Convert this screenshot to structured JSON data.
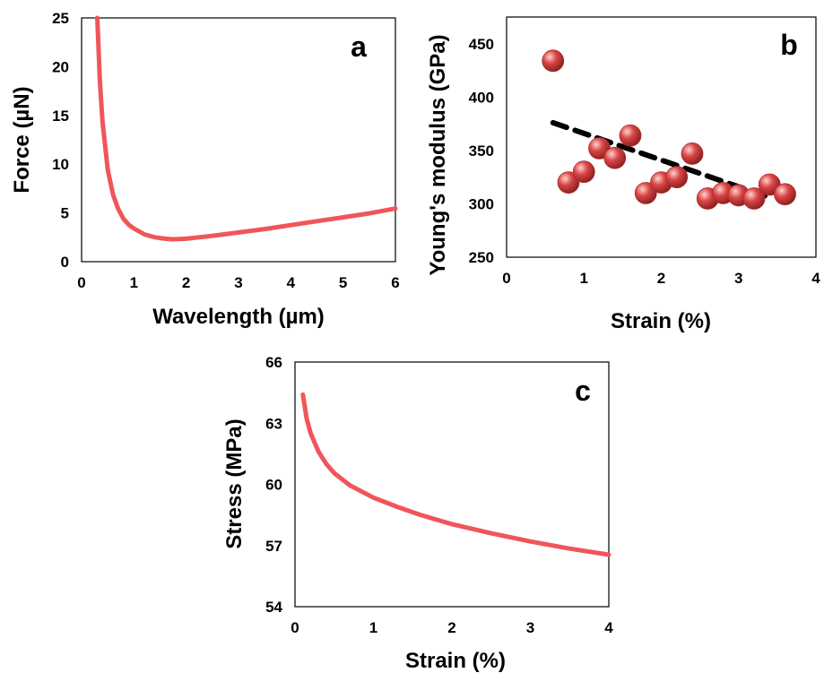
{
  "colors": {
    "curve": "#f0555a",
    "marker": "#d94545",
    "trend": "#000000"
  },
  "chart_data": [
    {
      "type": "line",
      "panel_label": "a",
      "xlabel": "Wavelength (µm)",
      "ylabel": "Force (µN)",
      "xlim": [
        0,
        6
      ],
      "ylim": [
        0,
        25
      ],
      "xticks": [
        "0",
        "1",
        "2",
        "3",
        "4",
        "5",
        "6"
      ],
      "yticks": [
        "0",
        "5",
        "10",
        "15",
        "20",
        "25"
      ],
      "grid": false,
      "series": [
        {
          "x": [
            0.3,
            0.35,
            0.4,
            0.5,
            0.6,
            0.7,
            0.8,
            0.9,
            1.0,
            1.2,
            1.4,
            1.6,
            1.73,
            2.0,
            2.5,
            3.0,
            3.5,
            4.0,
            4.5,
            5.0,
            5.5,
            6.0
          ],
          "y": [
            25.0,
            18.5,
            14.4,
            9.4,
            6.9,
            5.4,
            4.4,
            3.8,
            3.4,
            2.8,
            2.5,
            2.35,
            2.3,
            2.35,
            2.65,
            3.0,
            3.35,
            3.75,
            4.15,
            4.55,
            4.95,
            5.45
          ]
        }
      ]
    },
    {
      "type": "scatter",
      "panel_label": "b",
      "xlabel": "Strain (%)",
      "ylabel": "Young's modulus (GPa)",
      "xlim": [
        0,
        4
      ],
      "ylim": [
        250,
        475
      ],
      "xticks": [
        "0",
        "1",
        "2",
        "3",
        "4"
      ],
      "yticks": [
        "250",
        "300",
        "350",
        "400",
        "450"
      ],
      "grid": false,
      "series": [
        {
          "x": [
            0.6,
            0.8,
            1.0,
            1.2,
            1.4,
            1.6,
            1.8,
            2.0,
            2.2,
            2.4,
            2.6,
            2.8,
            3.0,
            3.2,
            3.4,
            3.6
          ],
          "y": [
            434,
            320,
            330,
            352,
            343,
            364,
            310,
            320,
            325,
            347,
            305,
            310,
            308,
            305,
            318,
            309
          ]
        }
      ],
      "trendline": {
        "x": [
          0.6,
          3.4
        ],
        "y": [
          376,
          306
        ]
      }
    },
    {
      "type": "line",
      "panel_label": "c",
      "xlabel": "Strain (%)",
      "ylabel": "Stress (MPa)",
      "xlim": [
        0,
        4
      ],
      "ylim": [
        54,
        66
      ],
      "xticks": [
        "0",
        "1",
        "2",
        "3",
        "4"
      ],
      "yticks": [
        "54",
        "57",
        "60",
        "63",
        "66"
      ],
      "grid": false,
      "series": [
        {
          "x": [
            0.1,
            0.15,
            0.2,
            0.3,
            0.4,
            0.5,
            0.7,
            1.0,
            1.3,
            1.6,
            2.0,
            2.5,
            3.0,
            3.5,
            4.0
          ],
          "y": [
            64.4,
            63.2,
            62.5,
            61.6,
            61.0,
            60.55,
            59.95,
            59.35,
            58.9,
            58.5,
            58.05,
            57.6,
            57.2,
            56.85,
            56.55
          ]
        }
      ]
    }
  ]
}
